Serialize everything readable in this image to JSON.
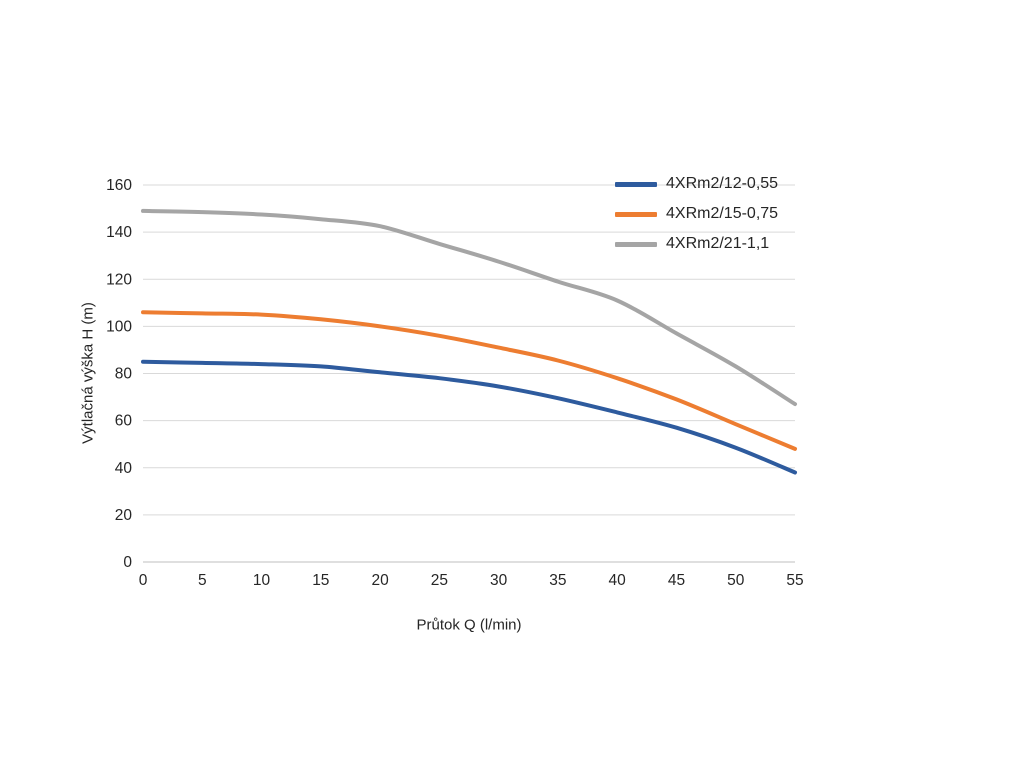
{
  "chart_data": {
    "type": "line",
    "title": "",
    "xlabel": "Průtok Q (l/min)",
    "ylabel": "Výtlačná výška H (m)",
    "x": [
      0,
      5,
      10,
      15,
      20,
      25,
      30,
      35,
      40,
      45,
      50,
      55
    ],
    "x_ticks": [
      0,
      5,
      10,
      15,
      20,
      25,
      30,
      35,
      40,
      45,
      50,
      55
    ],
    "y_ticks": [
      0,
      20,
      40,
      60,
      80,
      100,
      120,
      140,
      160
    ],
    "xlim": [
      0,
      55
    ],
    "ylim": [
      0,
      160
    ],
    "grid": "horizontal",
    "legend_position": "top-right-inside",
    "series": [
      {
        "name": "4XRm2/12-0,55",
        "color": "#2e5b9e",
        "values": [
          85,
          84.5,
          84,
          83,
          80.5,
          78,
          74.5,
          69.5,
          63.5,
          57,
          48.5,
          38
        ]
      },
      {
        "name": "4XRm2/15-0,75",
        "color": "#ed7d31",
        "values": [
          106,
          105.5,
          105,
          103,
          100,
          96,
          91,
          85.5,
          78,
          69,
          58.5,
          48
        ]
      },
      {
        "name": "4XRm2/21-1,1",
        "color": "#a5a5a5",
        "values": [
          149,
          148.5,
          147.5,
          145.5,
          142.5,
          135,
          127.5,
          119,
          111,
          97,
          83,
          67
        ]
      }
    ],
    "colors": {
      "gridline": "#d9d9d9",
      "axis_line": "#bfbfbf",
      "tick_text": "#262626",
      "background": "#ffffff"
    }
  }
}
